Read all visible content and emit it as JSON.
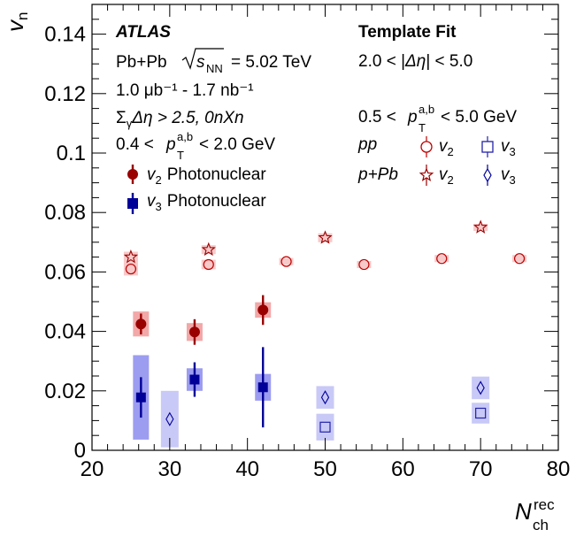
{
  "chart_data": {
    "type": "scatter",
    "xlim": [
      20,
      80
    ],
    "ylim": [
      0,
      0.15
    ],
    "x_ticks": [
      "20",
      "30",
      "40",
      "50",
      "60",
      "70",
      "80"
    ],
    "y_ticks": [
      "0",
      "0.02",
      "0.04",
      "0.06",
      "0.08",
      "0.1",
      "0.12",
      "0.14"
    ],
    "xlabel": "N",
    "xlabel_sup": "rec",
    "xlabel_sub": "ch",
    "ylabel": "v",
    "ylabel_sub": "n",
    "annotations_left": {
      "experiment": "ATLAS",
      "system": "Pb+Pb",
      "energy_sqrt": "s",
      "energy_sub": "NN",
      "energy_value": "= 5.02 TeV",
      "lumi": "1.0 μb⁻¹ - 1.7 nb⁻¹",
      "gap_cut_sigma": "Σ",
      "gap_cut_gamma": "γ",
      "gap_cut_rest": "Δη > 2.5, 0nXn",
      "pt_low": "0.4 <",
      "pt_p": "p",
      "pt_sup": "a,b",
      "pt_sub": "T",
      "pt_high": "< 2.0 GeV"
    },
    "annotations_right": {
      "method": "Template Fit",
      "deta_low": "2.0 < |",
      "deta_mid": "Δη",
      "deta_high": "| < 5.0",
      "pt_low": "0.5 <",
      "pt_p": "p",
      "pt_sup": "a,b",
      "pt_sub": "T",
      "pt_high": "< 5.0 GeV",
      "pp_label": "pp",
      "ppb_label": "p+Pb",
      "v2": "v",
      "v2_sub": "2",
      "v3": "v",
      "v3_sub": "3"
    },
    "legend": [
      {
        "name": "v",
        "sub": "2",
        "text": "Photonuclear",
        "color": "#990000",
        "marker": "circle-filled"
      },
      {
        "name": "v",
        "sub": "3",
        "text": "Photonuclear",
        "color": "#000099",
        "marker": "square-filled"
      }
    ],
    "colors": {
      "v2_main": "#990000",
      "v2_band": "#f2a8a8",
      "v2_band_light": "#f7c9c9",
      "v2_open": "#c00000",
      "v3_main": "#000099",
      "v3_band": "#9c9cf0",
      "v3_band_light": "#c9c9f7",
      "v3_open": "#2222aa"
    },
    "series": [
      {
        "id": "v2_photonuclear",
        "marker": "circle-filled",
        "x": [
          26.3,
          33.2,
          42.0
        ],
        "y": [
          0.0425,
          0.0398,
          0.0472
        ],
        "stat": [
          0.0035,
          0.0043,
          0.005
        ],
        "sys": [
          0.0042,
          0.003,
          0.0026
        ]
      },
      {
        "id": "v3_photonuclear",
        "marker": "square-filled",
        "x": [
          26.3,
          33.2,
          42.0
        ],
        "y": [
          0.0178,
          0.0238,
          0.0212
        ],
        "stat": [
          0.0068,
          0.0058,
          0.0135
        ],
        "sys": [
          0.0142,
          0.0038,
          0.0045
        ]
      },
      {
        "id": "v2_pp",
        "marker": "circle-open",
        "x": [
          25.0,
          35.0,
          45.0,
          55.0,
          65.0,
          75.0
        ],
        "y": [
          0.061,
          0.0625,
          0.0635,
          0.0625,
          0.0645,
          0.0645
        ],
        "sys": [
          0.0022,
          0.0016,
          0.0012,
          0.0012,
          0.0012,
          0.0012
        ]
      },
      {
        "id": "v2_pPb",
        "marker": "star-open",
        "x": [
          25.0,
          35.0,
          50.0,
          70.0
        ],
        "y": [
          0.065,
          0.0675,
          0.0715,
          0.075
        ],
        "sys": [
          0.0018,
          0.0015,
          0.0015,
          0.0012
        ]
      },
      {
        "id": "v3_pp",
        "marker": "square-open",
        "x": [
          50.0,
          70.0
        ],
        "y": [
          0.0078,
          0.0125
        ],
        "sys": [
          0.0045,
          0.0035
        ]
      },
      {
        "id": "v3_pPb",
        "marker": "diamond-open",
        "x": [
          30.0,
          50.0,
          70.0
        ],
        "y": [
          0.0105,
          0.0178,
          0.021
        ],
        "sys": [
          0.0095,
          0.0038,
          0.0038
        ]
      }
    ]
  }
}
